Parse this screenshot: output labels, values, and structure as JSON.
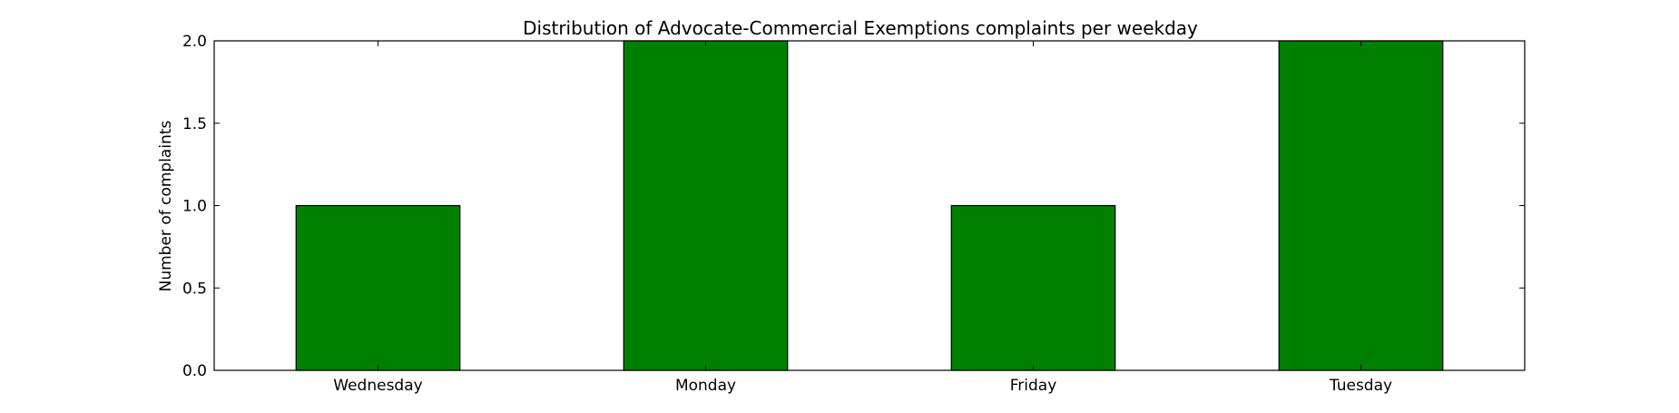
{
  "chart_data": {
    "type": "bar",
    "title": "Distribution of  Advocate-Commercial Exemptions complaints per weekday",
    "xlabel": "",
    "ylabel": "Number of complaints",
    "categories": [
      "Wednesday",
      "Monday",
      "Friday",
      "Tuesday"
    ],
    "values": [
      1,
      2,
      1,
      2
    ],
    "ylim": [
      0,
      2.0
    ],
    "yticks": [
      "0.0",
      "0.5",
      "1.0",
      "1.5",
      "2.0"
    ],
    "bar_color": "#008000",
    "grid": false,
    "legend": "none"
  }
}
